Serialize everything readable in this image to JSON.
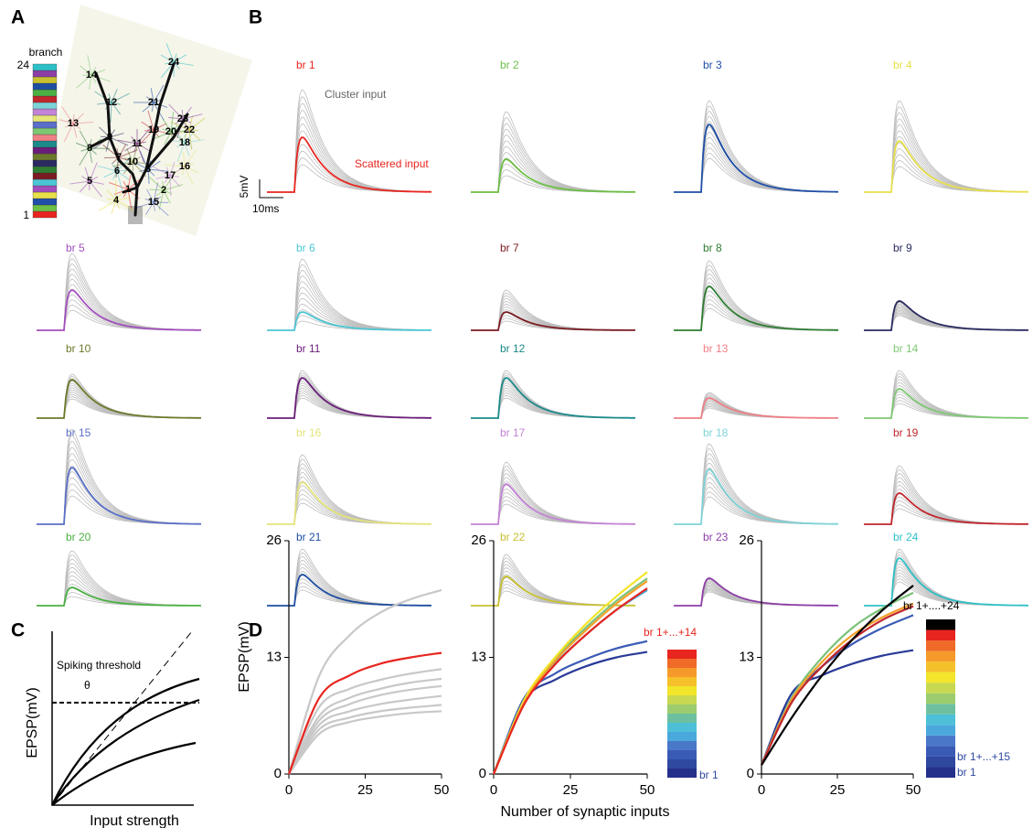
{
  "panel_labels": [
    "A",
    "B",
    "C",
    "D"
  ],
  "panel_a": {
    "colorbar_title": "branch",
    "colorbar_max": "24",
    "colorbar_min": "1",
    "branch_labels": [
      "1",
      "2",
      "3",
      "4",
      "5",
      "6",
      "7",
      "8",
      "9",
      "10",
      "11",
      "12",
      "13",
      "14",
      "15",
      "16",
      "17",
      "18",
      "19",
      "20",
      "21",
      "22",
      "23",
      "24"
    ]
  },
  "panel_b": {
    "cluster_label": "Cluster input",
    "scattered_label": "Scattered input",
    "scale_y": "5mV",
    "scale_x": "10ms",
    "traces": [
      {
        "label": "br 1",
        "color": "#e8251f",
        "peak": 15,
        "gray_max": 28
      },
      {
        "label": "br 2",
        "color": "#6cbf45",
        "peak": 9,
        "gray_max": 22
      },
      {
        "label": "br 3",
        "color": "#1f4fa8",
        "peak": 18.5,
        "gray_max": 25
      },
      {
        "label": "br 4",
        "color": "#e8e04a",
        "peak": 14,
        "gray_max": 25
      },
      {
        "label": "br 5",
        "color": "#a24fbd",
        "peak": 11,
        "gray_max": 21
      },
      {
        "label": "br 6",
        "color": "#4cc6d4",
        "peak": 5,
        "gray_max": 19.5
      },
      {
        "label": "br 7",
        "color": "#7a1c22",
        "peak": 5,
        "gray_max": 11
      },
      {
        "label": "br 8",
        "color": "#2e7d32",
        "peak": 12,
        "gray_max": 19
      },
      {
        "label": "br 9",
        "color": "#2a2a60",
        "peak": 8,
        "gray_max": 8
      },
      {
        "label": "br 10",
        "color": "#6b7a2a",
        "peak": 10.5,
        "gray_max": 12
      },
      {
        "label": "br 11",
        "color": "#6a1e7a",
        "peak": 11,
        "gray_max": 13
      },
      {
        "label": "br 12",
        "color": "#1c8a8a",
        "peak": 11,
        "gray_max": 13
      },
      {
        "label": "br 13",
        "color": "#ef7f86",
        "peak": 5.5,
        "gray_max": 7
      },
      {
        "label": "br 14",
        "color": "#7ec873",
        "peak": 8,
        "gray_max": 13
      },
      {
        "label": "br 15",
        "color": "#5a6fc8",
        "peak": 15.5,
        "gray_max": 26
      },
      {
        "label": "br 16",
        "color": "#e4e47a",
        "peak": 11.5,
        "gray_max": 19
      },
      {
        "label": "br 17",
        "color": "#c383d6",
        "peak": 11,
        "gray_max": 17
      },
      {
        "label": "br 18",
        "color": "#7dd3d8",
        "peak": 15,
        "gray_max": 22
      },
      {
        "label": "br 19",
        "color": "#c0262c",
        "peak": 8.5,
        "gray_max": 16
      },
      {
        "label": "br 20",
        "color": "#4bb044",
        "peak": 5,
        "gray_max": 15
      },
      {
        "label": "br 21",
        "color": "#1e4ea0",
        "peak": 8.5,
        "gray_max": 15.5
      },
      {
        "label": "br 22",
        "color": "#c8c030",
        "peak": 8,
        "gray_max": 14
      },
      {
        "label": "br 23",
        "color": "#8c3ea6",
        "peak": 7.5,
        "gray_max": 7.5
      },
      {
        "label": "br 24",
        "color": "#2dc0c6",
        "peak": 13,
        "gray_max": 15.5
      }
    ]
  },
  "panel_c": {
    "ylabel": "EPSP(mV)",
    "xlabel": "Input strength",
    "threshold_label": "Spiking threshold",
    "theta": "θ"
  },
  "panel_d": {
    "ylabel": "EPSP(mV)",
    "xlabel": "Number of synaptic inputs",
    "xlim": [
      0,
      50
    ],
    "ylim": [
      0,
      26
    ],
    "xticks": [
      0,
      25,
      50
    ],
    "yticks": [
      0,
      13,
      26
    ],
    "x": [
      0,
      10,
      20,
      30,
      40,
      50
    ],
    "plots": [
      {
        "series": [
          {
            "color": "#c8c8c8",
            "values": [
              0,
              11,
              15.5,
              18,
              19.5,
              20.5
            ]
          },
          {
            "color": "#c8c8c8",
            "values": [
              0,
              7.5,
              9.5,
              10.5,
              11.2,
              11.7
            ]
          },
          {
            "color": "#c8c8c8",
            "values": [
              0,
              6.5,
              8.5,
              9.5,
              10.2,
              10.6
            ]
          },
          {
            "color": "#c8c8c8",
            "values": [
              0,
              6,
              7.8,
              8.8,
              9.4,
              9.8
            ]
          },
          {
            "color": "#c8c8c8",
            "values": [
              0,
              5.5,
              7,
              7.8,
              8.3,
              8.7
            ]
          },
          {
            "color": "#c8c8c8",
            "values": [
              0,
              5,
              6.3,
              7,
              7.4,
              7.7
            ]
          },
          {
            "color": "#c8c8c8",
            "values": [
              0,
              4.5,
              5.8,
              6.4,
              6.8,
              7
            ]
          },
          {
            "color": "#e8251f",
            "values": [
              0,
              8.5,
              11,
              12.3,
              13,
              13.5
            ]
          }
        ]
      },
      {
        "series": [
          {
            "color": "#2a3a98",
            "values": [
              0,
              8.2,
              10.5,
              12,
              13,
              13.6
            ]
          },
          {
            "color": "#3a5bb5",
            "values": [
              0,
              8.5,
              11.2,
              12.8,
              14,
              14.8
            ]
          },
          {
            "color": "#3aa8d8",
            "values": [
              0,
              8,
              12.3,
              15.5,
              18.3,
              20.5
            ]
          },
          {
            "color": "#7cc27a",
            "values": [
              0,
              8.2,
              12.8,
              16.3,
              19.3,
              21.8
            ]
          },
          {
            "color": "#f2e52a",
            "values": [
              0,
              8.3,
              13,
              16.7,
              19.8,
              22.5
            ]
          },
          {
            "color": "#f5a02a",
            "values": [
              0,
              8,
              12.6,
              16,
              19,
              21.5
            ]
          },
          {
            "color": "#e8251f",
            "values": [
              0,
              7.8,
              12.2,
              15.5,
              18.3,
              20.7
            ]
          }
        ],
        "colorbar": [
          "#25308a",
          "#2f48a0",
          "#3a5bb5",
          "#4a78c8",
          "#4aa8dc",
          "#4dc0d8",
          "#6cc0a0",
          "#9ccc6e",
          "#c8d850",
          "#f2e52a",
          "#f5c02a",
          "#f59a2a",
          "#f06a28",
          "#e8251f"
        ],
        "colorbar_labels": [
          {
            "text": "br 1+...+14",
            "color": "#e8251f"
          },
          {
            "text": "br 1",
            "color": "#2f48a0"
          }
        ]
      },
      {
        "series": [
          {
            "color": "#2a3a98",
            "values": [
              1,
              9,
              11,
              12.3,
              13.2,
              13.8
            ]
          },
          {
            "color": "#3a5bb5",
            "values": [
              1,
              8.5,
              12,
              14.5,
              16.3,
              17.7
            ]
          },
          {
            "color": "#7cc27a",
            "values": [
              1,
              8.5,
              13,
              16.3,
              18.5,
              20.2
            ]
          },
          {
            "color": "#f5a02a",
            "values": [
              1,
              8.3,
              12.5,
              15.5,
              17.5,
              19
            ]
          },
          {
            "color": "#c0262c",
            "values": [
              1,
              8,
              12,
              15,
              17.2,
              18.7
            ]
          },
          {
            "color": "#000000",
            "values": [
              1,
              6.3,
              11,
              15,
              18.3,
              21
            ]
          }
        ],
        "colorbar": [
          "#25308a",
          "#2f48a0",
          "#3a5bb5",
          "#4a78c8",
          "#4aa8dc",
          "#4dc0d8",
          "#6cc0a0",
          "#9ccc6e",
          "#c8d850",
          "#f2e52a",
          "#f5c02a",
          "#f59a2a",
          "#f06a28",
          "#e8251f",
          "#000000"
        ],
        "colorbar_labels": [
          {
            "text": "br 1+....+24",
            "color": "#000000"
          },
          {
            "text": "br 1+...+15",
            "color": "#2f48a0"
          },
          {
            "text": "br 1",
            "color": "#2f48a0"
          }
        ]
      }
    ]
  }
}
